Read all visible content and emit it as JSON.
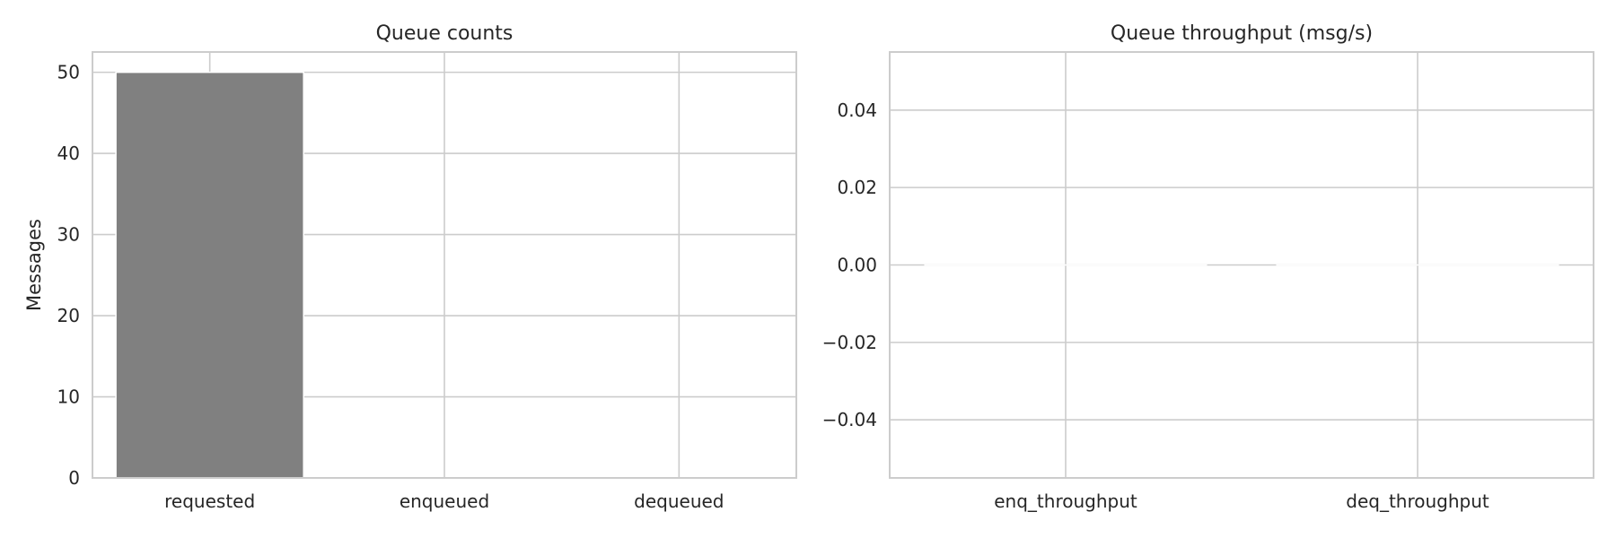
{
  "chart_data": [
    {
      "type": "bar",
      "title": "Queue counts",
      "xlabel": "",
      "ylabel": "Messages",
      "categories": [
        "requested",
        "enqueued",
        "dequeued"
      ],
      "values": [
        50,
        0,
        0
      ],
      "ylim": [
        0,
        52.5
      ],
      "yticks": [
        0,
        10,
        20,
        30,
        40,
        50
      ],
      "ytick_labels": [
        "0",
        "10",
        "20",
        "30",
        "40",
        "50"
      ],
      "bar_color": "#808080",
      "grid": true
    },
    {
      "type": "bar",
      "title": "Queue throughput (msg/s)",
      "xlabel": "",
      "ylabel": "",
      "categories": [
        "enq_throughput",
        "deq_throughput"
      ],
      "values": [
        0,
        0
      ],
      "ylim": [
        -0.055,
        0.055
      ],
      "yticks": [
        -0.04,
        -0.02,
        0.0,
        0.02,
        0.04
      ],
      "ytick_labels": [
        "−0.04",
        "−0.02",
        "0.00",
        "0.02",
        "0.04"
      ],
      "bar_color": "#808080",
      "grid": true
    }
  ]
}
